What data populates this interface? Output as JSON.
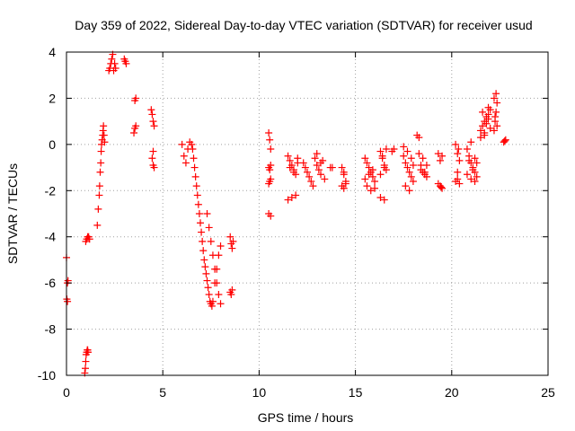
{
  "chart_data": {
    "type": "scatter",
    "title": "Day 359 of 2022, Sidereal Day-to-day VTEC variation (SDTVAR) for receiver usud",
    "xlabel": "GPS time / hours",
    "ylabel": "SDTVAR / TECUs",
    "xlim": [
      0,
      25
    ],
    "ylim": [
      -10,
      4
    ],
    "xticks": [
      0,
      5,
      10,
      15,
      20,
      25
    ],
    "yticks": [
      -10,
      -8,
      -6,
      -4,
      -2,
      0,
      2,
      4
    ],
    "xtick_labels": [
      "0",
      "5",
      "10",
      "15",
      "20",
      "25"
    ],
    "ytick_labels": [
      "-10",
      "-8",
      "-6",
      "-4",
      "-2",
      "0",
      "2",
      "4"
    ],
    "grid": true,
    "marker": "+",
    "color": "#ff0000",
    "series": [
      {
        "name": "SDTVAR",
        "x": [
          0.0,
          0.02,
          0.05,
          0.05,
          0.08,
          0.95,
          0.98,
          1.0,
          1.02,
          1.05,
          1.08,
          1.1,
          1.12,
          1.0,
          1.05,
          1.1,
          1.15,
          1.2,
          1.6,
          1.65,
          1.7,
          1.72,
          1.75,
          1.78,
          1.8,
          1.82,
          1.85,
          1.88,
          1.9,
          1.92,
          1.95,
          1.98,
          2.2,
          2.25,
          2.3,
          2.35,
          2.4,
          2.45,
          2.5,
          2.55,
          3.0,
          3.05,
          3.1,
          3.5,
          3.55,
          3.6,
          3.55,
          3.6,
          4.4,
          4.45,
          4.5,
          4.55,
          4.5,
          4.45,
          4.5,
          4.55,
          6.0,
          6.1,
          6.2,
          6.3,
          6.4,
          6.5,
          6.55,
          6.6,
          6.65,
          6.7,
          6.75,
          6.8,
          6.85,
          6.9,
          6.95,
          7.0,
          7.05,
          7.1,
          7.15,
          7.2,
          7.25,
          7.3,
          7.35,
          7.4,
          7.45,
          7.5,
          7.55,
          7.6,
          7.7,
          7.8,
          7.9,
          8.0,
          7.3,
          7.4,
          7.5,
          7.6,
          7.7,
          7.8,
          7.9,
          8.0,
          8.5,
          8.55,
          8.6,
          8.5,
          8.55,
          8.6,
          8.65,
          10.5,
          10.55,
          10.6,
          10.5,
          10.55,
          10.6,
          10.5,
          10.55,
          10.6,
          10.5,
          10.6,
          11.5,
          11.6,
          11.7,
          11.8,
          11.9,
          12.0,
          11.6,
          11.8,
          12.0,
          11.5,
          11.7,
          11.9,
          12.3,
          12.4,
          12.5,
          12.6,
          12.7,
          12.8,
          12.9,
          13.0,
          13.1,
          13.2,
          13.3,
          13.0,
          13.2,
          13.4,
          13.7,
          13.8,
          14.3,
          14.4,
          14.5,
          14.3,
          14.4,
          14.5,
          14.4,
          15.5,
          15.6,
          15.7,
          15.8,
          15.9,
          16.0,
          15.6,
          15.8,
          16.0,
          15.5,
          15.7,
          15.9,
          16.3,
          16.4,
          16.5,
          16.6,
          16.3,
          16.5,
          16.4,
          16.6,
          16.3,
          16.5,
          16.9,
          17.0,
          17.5,
          17.6,
          17.7,
          17.8,
          17.9,
          18.0,
          17.6,
          17.8,
          17.5,
          17.7,
          17.9,
          18.0,
          18.2,
          18.3,
          18.4,
          18.5,
          18.6,
          18.7,
          18.3,
          18.5,
          18.7,
          18.4,
          18.6,
          19.3,
          19.4,
          19.5,
          19.4,
          19.5,
          19.3,
          19.45,
          20.2,
          20.3,
          20.4,
          20.3,
          20.2,
          20.4,
          20.3,
          20.35,
          20.8,
          20.9,
          21.0,
          21.1,
          21.2,
          21.3,
          20.9,
          21.1,
          21.3,
          20.8,
          21.0,
          21.2,
          21.0,
          21.2,
          21.5,
          21.6,
          21.7,
          21.8,
          21.9,
          22.0,
          21.6,
          21.8,
          22.0,
          21.7,
          21.9,
          21.5,
          21.7,
          21.9,
          22.2,
          22.25,
          22.3,
          22.35,
          22.2,
          22.3,
          22.25,
          22.35,
          22.7,
          22.8,
          22.75
        ],
        "y": [
          -4.9,
          -6.7,
          -6.8,
          -6.0,
          -5.9,
          -9.9,
          -9.7,
          -9.4,
          -9.1,
          -9.0,
          -8.9,
          -8.9,
          -9.0,
          -4.2,
          -4.1,
          -4.0,
          -4.0,
          -4.1,
          -3.5,
          -2.8,
          -2.2,
          -1.8,
          -1.2,
          -0.8,
          -0.3,
          0.0,
          0.2,
          0.4,
          0.6,
          0.8,
          0.4,
          0.1,
          3.2,
          3.3,
          3.5,
          3.7,
          3.9,
          3.2,
          3.5,
          3.3,
          3.7,
          3.6,
          3.5,
          0.5,
          0.7,
          0.8,
          1.9,
          2.0,
          1.5,
          1.3,
          1.0,
          0.8,
          -0.3,
          -0.6,
          -0.9,
          -1.0,
          0.0,
          -0.5,
          -0.8,
          -0.2,
          0.1,
          0.0,
          -0.2,
          -0.6,
          -1.0,
          -1.4,
          -1.8,
          -2.2,
          -2.6,
          -3.0,
          -3.4,
          -3.8,
          -4.2,
          -4.6,
          -5.0,
          -5.3,
          -5.6,
          -5.9,
          -6.2,
          -6.5,
          -6.8,
          -6.9,
          -7.0,
          -6.8,
          -6.0,
          -5.4,
          -4.8,
          -4.4,
          -3.0,
          -3.6,
          -4.2,
          -4.8,
          -5.4,
          -6.0,
          -6.5,
          -6.9,
          -4.0,
          -4.3,
          -4.5,
          -6.4,
          -6.5,
          -6.3,
          -4.2,
          0.5,
          0.2,
          -0.2,
          -1.0,
          -1.1,
          -0.9,
          -1.7,
          -1.6,
          -1.5,
          -3.0,
          -3.1,
          -0.5,
          -0.7,
          -0.9,
          -1.1,
          -1.3,
          -0.6,
          -1.0,
          -1.2,
          -0.8,
          -2.4,
          -2.3,
          -2.2,
          -0.8,
          -1.0,
          -1.2,
          -1.4,
          -1.6,
          -1.8,
          -0.6,
          -0.9,
          -1.1,
          -1.3,
          -0.7,
          -0.4,
          -0.8,
          -1.5,
          -1.0,
          -1.0,
          -1.0,
          -1.3,
          -1.6,
          -1.8,
          -1.9,
          -1.7,
          -1.2,
          -0.6,
          -0.8,
          -1.0,
          -1.2,
          -1.4,
          -1.6,
          -1.8,
          -2.0,
          -1.9,
          -1.5,
          -1.3,
          -1.1,
          -0.3,
          -0.6,
          -0.9,
          -1.1,
          -2.3,
          -2.4,
          -0.5,
          -0.2,
          -1.3,
          -1.0,
          -0.3,
          -0.2,
          -0.5,
          -0.8,
          -1.0,
          -1.2,
          -1.4,
          -1.6,
          -1.8,
          -2.0,
          -0.1,
          -0.3,
          -0.6,
          -0.9,
          0.4,
          0.3,
          -0.9,
          -1.2,
          -1.3,
          -1.4,
          -0.4,
          -0.6,
          -0.9,
          -1.1,
          -1.2,
          -1.7,
          -1.8,
          -1.9,
          -0.7,
          -0.5,
          -0.4,
          -1.85,
          0.0,
          -0.4,
          -0.7,
          -1.5,
          -1.6,
          -1.7,
          -1.2,
          -0.2,
          -0.2,
          -0.5,
          -0.8,
          -1.0,
          -1.2,
          -1.4,
          -0.7,
          -1.1,
          -0.8,
          -1.3,
          -1.5,
          -1.6,
          0.1,
          -0.6,
          0.6,
          0.8,
          1.0,
          1.2,
          1.3,
          1.5,
          1.4,
          0.9,
          0.7,
          0.4,
          1.1,
          0.3,
          0.5,
          1.6,
          0.6,
          1.0,
          1.4,
          1.8,
          2.0,
          2.2,
          1.2,
          0.8,
          0.1,
          0.2,
          0.15
        ]
      }
    ]
  }
}
